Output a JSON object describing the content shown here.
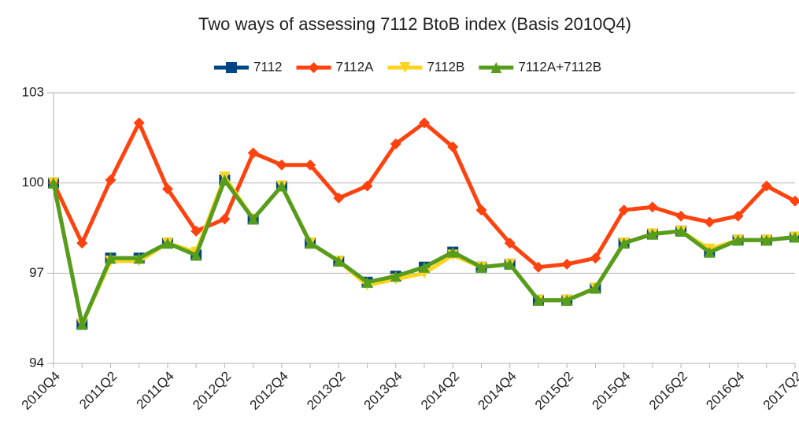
{
  "chart_data": {
    "type": "line",
    "title": "Two ways of assessing 7112 BtoB index (Basis 2010Q4)",
    "categories": [
      "2010Q4",
      null,
      "2011Q2",
      null,
      "2011Q4",
      null,
      "2012Q2",
      null,
      "2012Q4",
      null,
      "2013Q2",
      null,
      "2013Q4",
      null,
      "2014Q2",
      null,
      "2014Q4",
      null,
      "2015Q2",
      null,
      "2015Q4",
      null,
      "2016Q2",
      null,
      "2016Q4",
      null,
      "2017Q2"
    ],
    "series": [
      {
        "name": "7112",
        "color": "#004586",
        "marker": "square",
        "values": [
          100,
          95.3,
          97.5,
          97.5,
          98.0,
          97.6,
          100.1,
          98.8,
          99.9,
          98.0,
          97.4,
          96.7,
          96.9,
          97.2,
          97.7,
          97.2,
          97.3,
          96.1,
          96.1,
          96.5,
          98.0,
          98.3,
          98.4,
          97.7,
          98.1,
          98.1,
          98.2
        ]
      },
      {
        "name": "7112A",
        "color": "#ff420e",
        "marker": "diamond",
        "values": [
          100,
          98.0,
          100.1,
          102.0,
          99.8,
          98.4,
          98.8,
          101.0,
          100.6,
          100.6,
          99.5,
          99.9,
          101.3,
          102.0,
          101.2,
          99.1,
          98.0,
          97.2,
          97.3,
          97.5,
          99.1,
          99.2,
          98.9,
          98.7,
          98.9,
          99.9,
          99.4
        ]
      },
      {
        "name": "7112B",
        "color": "#ffd320",
        "marker": "triangle-down",
        "values": [
          100,
          95.3,
          97.4,
          97.4,
          98.0,
          97.7,
          100.2,
          98.8,
          99.9,
          98.0,
          97.4,
          96.6,
          96.8,
          97.0,
          97.6,
          97.2,
          97.3,
          96.1,
          96.1,
          96.5,
          98.0,
          98.3,
          98.4,
          97.8,
          98.1,
          98.1,
          98.2
        ]
      },
      {
        "name": "7112A+7112B",
        "color": "#579d1c",
        "marker": "triangle-up",
        "values": [
          100,
          95.3,
          97.5,
          97.5,
          98.0,
          97.6,
          100.1,
          98.8,
          99.9,
          98.0,
          97.4,
          96.7,
          96.9,
          97.2,
          97.7,
          97.2,
          97.3,
          96.1,
          96.1,
          96.5,
          98.0,
          98.3,
          98.4,
          97.7,
          98.1,
          98.1,
          98.2
        ]
      }
    ],
    "ylim": [
      94,
      103
    ],
    "yticks": [
      94,
      97,
      100,
      103
    ],
    "grid": true
  }
}
